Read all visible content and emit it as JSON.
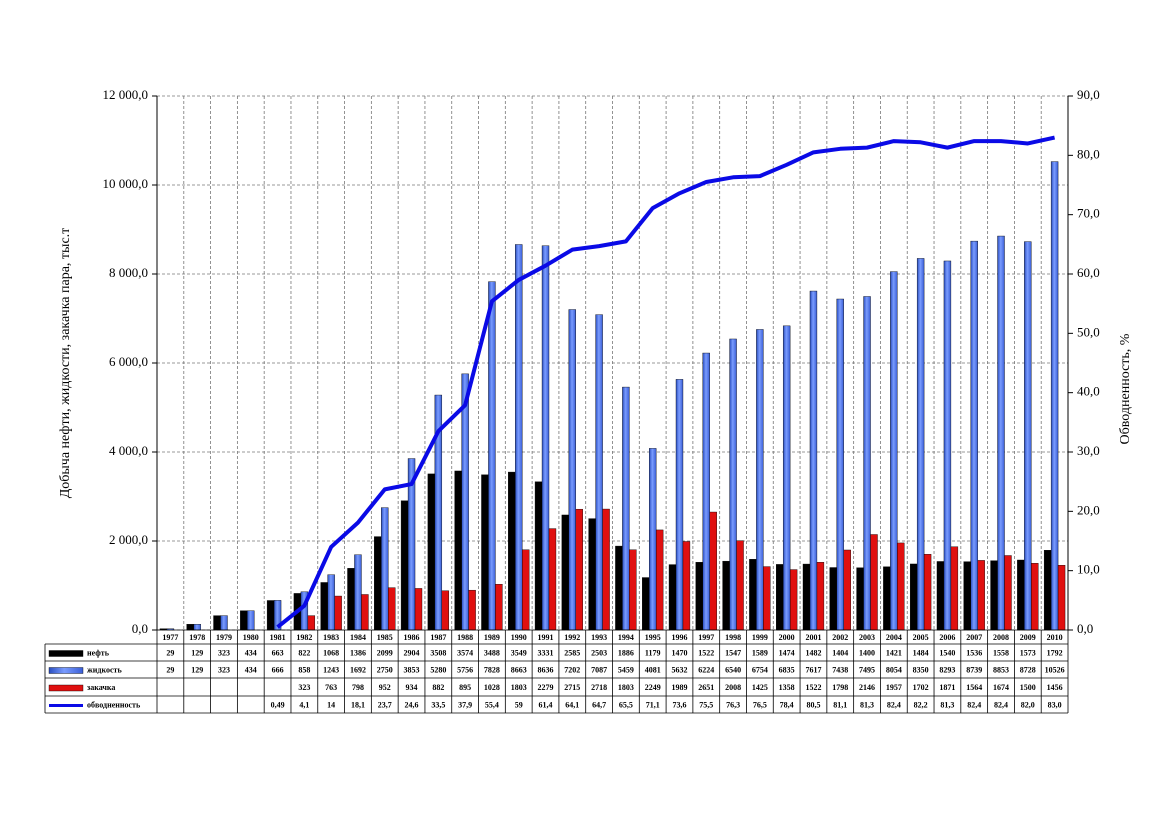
{
  "chart_data": {
    "type": "bar-line-table",
    "y_axis_title": "Добыча нефти, жидкости, закачка пара, тыс.т",
    "y2_axis_title": "Обводненность, %",
    "categories": [
      "1977",
      "1978",
      "1979",
      "1980",
      "1981",
      "1982",
      "1983",
      "1984",
      "1985",
      "1986",
      "1987",
      "1988",
      "1989",
      "1990",
      "1991",
      "1992",
      "1993",
      "1994",
      "1995",
      "1996",
      "1997",
      "1998",
      "1999",
      "2000",
      "2001",
      "2002",
      "2003",
      "2004",
      "2005",
      "2006",
      "2007",
      "2008",
      "2009",
      "2010"
    ],
    "series": [
      {
        "name": "нефть",
        "type": "bar",
        "color": "#000000",
        "values": [
          29,
          129,
          323,
          434,
          663,
          822,
          1068,
          1386,
          2099,
          2904,
          3508,
          3574,
          3488,
          3549,
          3331,
          2585,
          2503,
          1886,
          1179,
          1470,
          1522,
          1547,
          1589,
          1474,
          1482,
          1404,
          1400,
          1421,
          1484,
          1540,
          1536,
          1558,
          1573,
          1792
        ]
      },
      {
        "name": "жидкость",
        "type": "bar",
        "color": "#4a6ee6",
        "values": [
          29,
          129,
          323,
          434,
          666,
          858,
          1243,
          1692,
          2750,
          3853,
          5280,
          5756,
          7828,
          8663,
          8636,
          7202,
          7087,
          5459,
          4081,
          5632,
          6224,
          6540,
          6754,
          6835,
          7617,
          7438,
          7495,
          8054,
          8350,
          8293,
          8739,
          8853,
          8728,
          10526
        ]
      },
      {
        "name": "закачка",
        "type": "bar",
        "color": "#e01010",
        "values": [
          null,
          null,
          null,
          null,
          null,
          323,
          763,
          798,
          952,
          934,
          882,
          895,
          1028,
          1803,
          2279,
          2715,
          2718,
          1803,
          2249,
          1989,
          2651,
          2008,
          1425,
          1358,
          1522,
          1798,
          2146,
          1957,
          1702,
          1871,
          1564,
          1674,
          1500,
          1456
        ]
      },
      {
        "name": "обводненность",
        "type": "line",
        "axis": "y2",
        "color": "#0a0ae6",
        "values": [
          null,
          null,
          null,
          null,
          0.49,
          4.1,
          14,
          18.1,
          23.7,
          24.6,
          33.5,
          37.9,
          55.4,
          59,
          61.4,
          64.1,
          64.7,
          65.5,
          71.1,
          73.6,
          75.5,
          76.3,
          76.5,
          78.4,
          80.5,
          81.1,
          81.3,
          82.4,
          82.2,
          81.3,
          82.4,
          82.4,
          82.0,
          83.0
        ],
        "value_labels": [
          null,
          null,
          null,
          null,
          "0,49",
          "4,1",
          "14",
          "18,1",
          "23,7",
          "24,6",
          "33,5",
          "37,9",
          "55,4",
          "59",
          "61,4",
          "64,1",
          "64,7",
          "65,5",
          "71,1",
          "73,6",
          "75,5",
          "76,3",
          "76,5",
          "78,4",
          "80,5",
          "81,1",
          "81,3",
          "82,4",
          "82,2",
          "81,3",
          "82,4",
          "82,4",
          "82,0",
          "83,0"
        ]
      }
    ],
    "ylim": [
      0,
      12000
    ],
    "yticks": [
      {
        "value": 0,
        "label": "0,0"
      },
      {
        "value": 2000,
        "label": "2 000,0"
      },
      {
        "value": 4000,
        "label": "4 000,0"
      },
      {
        "value": 6000,
        "label": "6 000,0"
      },
      {
        "value": 8000,
        "label": "8 000,0"
      },
      {
        "value": 10000,
        "label": "10 000,0"
      },
      {
        "value": 12000,
        "label": "12 000,0"
      }
    ],
    "y2lim": [
      0,
      90
    ],
    "y2ticks": [
      {
        "value": 0,
        "label": "0,0"
      },
      {
        "value": 10,
        "label": "10,0"
      },
      {
        "value": 20,
        "label": "20,0"
      },
      {
        "value": 30,
        "label": "30,0"
      },
      {
        "value": 40,
        "label": "40,0"
      },
      {
        "value": 50,
        "label": "50,0"
      },
      {
        "value": 60,
        "label": "60,0"
      },
      {
        "value": 70,
        "label": "70,0"
      },
      {
        "value": 80,
        "label": "80,0"
      },
      {
        "value": 90,
        "label": "90,0"
      }
    ],
    "grid": true
  }
}
